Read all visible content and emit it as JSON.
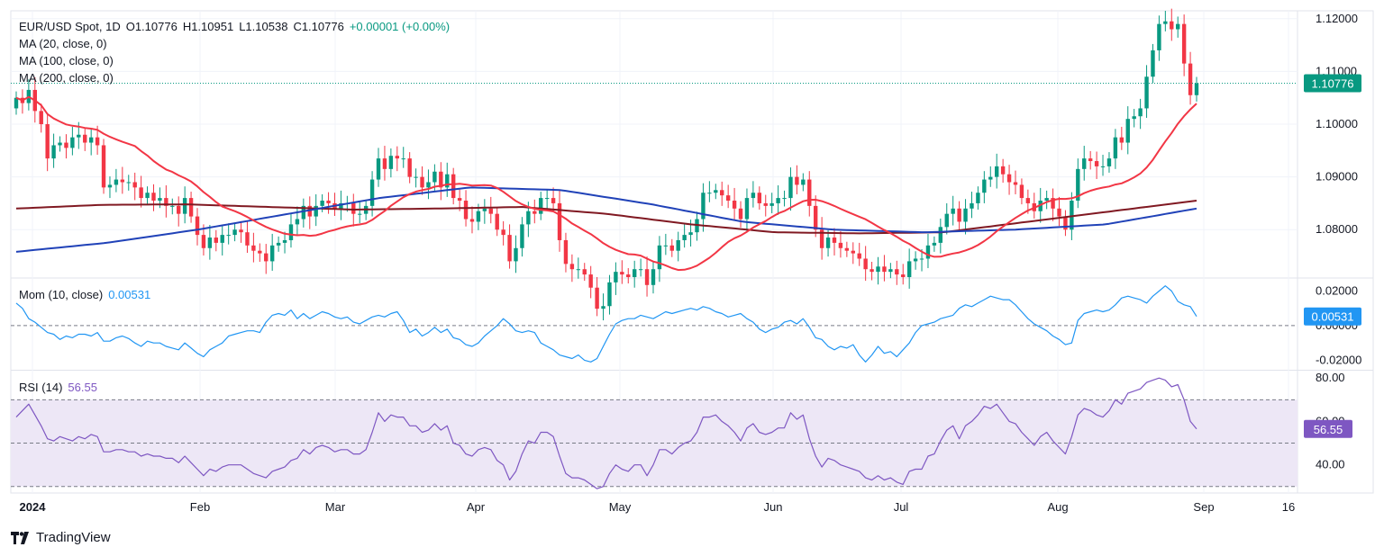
{
  "header": {
    "symbol": "EUR/USD Spot, 1D",
    "open": "O1.10776",
    "high": "H1.10951",
    "low": "L1.10538",
    "close": "C1.10776",
    "change": "+0.00001 (+0.00%)",
    "ma_labels": [
      "MA (20, close, 0)",
      "MA (100, close, 0)",
      "MA (200, close, 0)"
    ]
  },
  "momentum_legend": {
    "label": "Mom (10, close)",
    "value": "0.00531"
  },
  "rsi_legend": {
    "label": "RSI (14)",
    "value": "56.55"
  },
  "brand": "TradingView",
  "colors": {
    "up": "#089981",
    "down": "#f23645",
    "ma20": "#f23645",
    "ma100": "#2042b8",
    "ma200": "#801922",
    "momentum": "#2196f3",
    "rsi": "#7e57c2",
    "rsi_band": "#ede7f6"
  },
  "chart_data": [
    {
      "type": "candlestick",
      "title": "EUR/USD Spot, 1D",
      "y_ticks": [
        "1.12000",
        "1.11000",
        "1.10000",
        "1.09000",
        "1.08000"
      ],
      "ylim": [
        1.071,
        1.1215
      ],
      "last_price": "1.10776",
      "last_price_value": 1.10776,
      "x_ticks": [
        "2024",
        "Feb",
        "Mar",
        "Apr",
        "May",
        "Jun",
        "Jul",
        "Aug",
        "Sep",
        "16"
      ],
      "closes": [
        1.105,
        1.104,
        1.1065,
        1.1025,
        1.1,
        1.0935,
        1.096,
        1.0965,
        1.0955,
        1.0975,
        1.098,
        1.0965,
        1.0975,
        1.096,
        1.088,
        1.0885,
        1.0895,
        1.089,
        1.089,
        1.088,
        1.086,
        1.087,
        1.0855,
        1.086,
        1.0845,
        1.0845,
        1.083,
        1.086,
        1.0825,
        1.079,
        1.0765,
        1.0785,
        1.0775,
        1.079,
        1.079,
        1.08,
        1.0795,
        1.077,
        1.076,
        1.0755,
        1.074,
        1.077,
        1.0775,
        1.078,
        1.081,
        1.082,
        1.0845,
        1.0825,
        1.0845,
        1.0855,
        1.085,
        1.084,
        1.085,
        1.085,
        1.083,
        1.083,
        1.0845,
        1.0895,
        1.0935,
        1.0915,
        1.094,
        1.0935,
        1.0935,
        1.09,
        1.09,
        1.088,
        1.089,
        1.091,
        1.088,
        1.0905,
        1.086,
        1.0855,
        1.082,
        1.0815,
        1.0835,
        1.084,
        1.083,
        1.08,
        1.079,
        1.074,
        1.0765,
        1.081,
        1.0835,
        1.083,
        1.086,
        1.086,
        1.085,
        1.078,
        1.0735,
        1.0725,
        1.0725,
        1.0715,
        1.069,
        1.065,
        1.0655,
        1.07,
        1.072,
        1.0715,
        1.071,
        1.0725,
        1.0725,
        1.0695,
        1.0725,
        1.077,
        1.077,
        1.076,
        1.078,
        1.079,
        1.0795,
        1.082,
        1.087,
        1.087,
        1.0875,
        1.0865,
        1.0855,
        1.084,
        1.082,
        1.086,
        1.087,
        1.085,
        1.0845,
        1.085,
        1.086,
        1.086,
        1.09,
        1.0885,
        1.0895,
        1.0845,
        1.08,
        1.0765,
        1.0785,
        1.0775,
        1.0765,
        1.076,
        1.0755,
        1.0745,
        1.0725,
        1.072,
        1.073,
        1.072,
        1.0725,
        1.0715,
        1.071,
        1.074,
        1.0745,
        1.0745,
        1.077,
        1.0775,
        1.0805,
        1.083,
        1.084,
        1.0815,
        1.084,
        1.085,
        1.087,
        1.0895,
        1.09,
        1.092,
        1.0905,
        1.089,
        1.0885,
        1.086,
        1.085,
        1.0835,
        1.0855,
        1.086,
        1.084,
        1.0825,
        1.08,
        1.0855,
        1.0915,
        1.0935,
        1.093,
        1.092,
        1.092,
        1.0935,
        1.0975,
        1.0965,
        1.101,
        1.1015,
        1.103,
        1.109,
        1.114,
        1.119,
        1.1195,
        1.118,
        1.119,
        1.1115,
        1.1055,
        1.10776
      ],
      "ma20_series_anchor_points": "moving averages computed from closes",
      "ma100_approx": [
        1.0758,
        1.0775,
        1.08,
        1.083,
        1.086,
        1.088,
        1.0875,
        1.0848,
        1.0815,
        1.08,
        1.0795,
        1.08,
        1.081,
        1.084
      ],
      "ma200_approx": [
        1.084,
        1.0847,
        1.0848,
        1.0843,
        1.0838,
        1.084,
        1.0843,
        1.083,
        1.081,
        1.0795,
        1.0793,
        1.0795,
        1.0815,
        1.0835,
        1.0855
      ]
    },
    {
      "type": "line",
      "title": "Mom (10, close)",
      "y_ticks": [
        "0.02000",
        "0.00000",
        "-0.02000"
      ],
      "ylim": [
        -0.025,
        0.027
      ],
      "last_value": 0.00531,
      "series": [
        {
          "name": "Momentum",
          "values": [
            0.013,
            0.01,
            0.004,
            0.002,
            -0.001,
            -0.004,
            -0.005,
            -0.008,
            -0.006,
            -0.007,
            -0.005,
            -0.005,
            -0.006,
            -0.004,
            -0.009,
            -0.009,
            -0.007,
            -0.006,
            -0.0075,
            -0.01,
            -0.012,
            -0.009,
            -0.01,
            -0.01,
            -0.012,
            -0.013,
            -0.014,
            -0.01,
            -0.013,
            -0.016,
            -0.018,
            -0.014,
            -0.012,
            -0.01,
            -0.006,
            -0.005,
            -0.004,
            -0.003,
            -0.003,
            -0.004,
            0.002,
            0.006,
            0.007,
            0.006,
            0.009,
            0.004,
            0.007,
            0.004,
            0.006,
            0.008,
            0.007,
            0.005,
            0.004,
            0.005,
            0.002,
            0.001,
            0.003,
            0.005,
            0.006,
            0.005,
            0.007,
            0.008,
            0.003,
            -0.004,
            -0.002,
            -0.006,
            -0.004,
            -0.001,
            -0.004,
            -0.002,
            -0.007,
            -0.008,
            -0.011,
            -0.012,
            -0.01,
            -0.006,
            -0.003,
            0.0,
            0.004,
            0.001,
            -0.003,
            -0.004,
            -0.003,
            -0.004,
            -0.01,
            -0.012,
            -0.014,
            -0.017,
            -0.018,
            -0.019,
            -0.017,
            -0.02,
            -0.021,
            -0.019,
            -0.012,
            -0.005,
            0.001,
            0.003,
            0.004,
            0.004,
            0.006,
            0.005,
            0.004,
            0.006,
            0.008,
            0.007,
            0.008,
            0.009,
            0.01,
            0.009,
            0.011,
            0.01,
            0.008,
            0.007,
            0.005,
            0.006,
            0.007,
            0.004,
            0.002,
            -0.002,
            -0.004,
            -0.002,
            -0.001,
            0.002,
            0.003,
            0.001,
            0.004,
            -0.001,
            -0.007,
            -0.008,
            -0.012,
            -0.014,
            -0.012,
            -0.013,
            -0.011,
            -0.017,
            -0.021,
            -0.017,
            -0.012,
            -0.016,
            -0.015,
            -0.018,
            -0.014,
            -0.01,
            -0.004,
            0.0,
            0.001,
            0.002,
            0.004,
            0.005,
            0.006,
            0.01,
            0.012,
            0.011,
            0.013,
            0.015,
            0.017,
            0.016,
            0.015,
            0.015,
            0.012,
            0.008,
            0.004,
            0.001,
            -0.001,
            -0.003,
            -0.006,
            -0.008,
            -0.011,
            -0.01,
            0.003,
            0.007,
            0.008,
            0.009,
            0.008,
            0.009,
            0.012,
            0.016,
            0.017,
            0.016,
            0.015,
            0.013,
            0.017,
            0.02,
            0.023,
            0.02,
            0.014,
            0.012,
            0.011,
            0.00531
          ]
        }
      ]
    },
    {
      "type": "line",
      "title": "RSI (14)",
      "y_ticks": [
        "80.00",
        "60.00",
        "40.00"
      ],
      "ylim": [
        27,
        83
      ],
      "levels": [
        70,
        50,
        30
      ],
      "last_value": 56.55,
      "series": [
        {
          "name": "RSI",
          "values": [
            62,
            65,
            68,
            63,
            58,
            52,
            51,
            53,
            52,
            51,
            53,
            52,
            54,
            53,
            46,
            46,
            47,
            47,
            46,
            46,
            44,
            45,
            44,
            44,
            43,
            43,
            41,
            44,
            41,
            38,
            35,
            38,
            37,
            39,
            40,
            40,
            40,
            38,
            36,
            35,
            34,
            37,
            38,
            39,
            42,
            43,
            47,
            45,
            48,
            49,
            48,
            46,
            47,
            47,
            45,
            45,
            47,
            55,
            64,
            60,
            63,
            62,
            62,
            58,
            58,
            55,
            56,
            59,
            56,
            58,
            50,
            49,
            45,
            44,
            47,
            48,
            47,
            42,
            40,
            33,
            37,
            45,
            51,
            50,
            55,
            55,
            53,
            44,
            36,
            34,
            34,
            33,
            31,
            29,
            30,
            36,
            40,
            38,
            37,
            40,
            40,
            35,
            40,
            47,
            47,
            45,
            48,
            50,
            51,
            55,
            62,
            62,
            63,
            60,
            58,
            55,
            51,
            57,
            59,
            55,
            54,
            55,
            57,
            57,
            64,
            61,
            63,
            52,
            44,
            39,
            43,
            42,
            40,
            39,
            38,
            37,
            34,
            33,
            35,
            33,
            34,
            32,
            31,
            37,
            38,
            38,
            44,
            45,
            51,
            56,
            58,
            52,
            58,
            60,
            63,
            67,
            66,
            68,
            64,
            60,
            59,
            55,
            52,
            49,
            53,
            55,
            51,
            48,
            45,
            53,
            63,
            66,
            65,
            63,
            62,
            65,
            70,
            68,
            73,
            74,
            75,
            78,
            79,
            80,
            79,
            76,
            77,
            70,
            60,
            56.55
          ]
        }
      ]
    }
  ]
}
